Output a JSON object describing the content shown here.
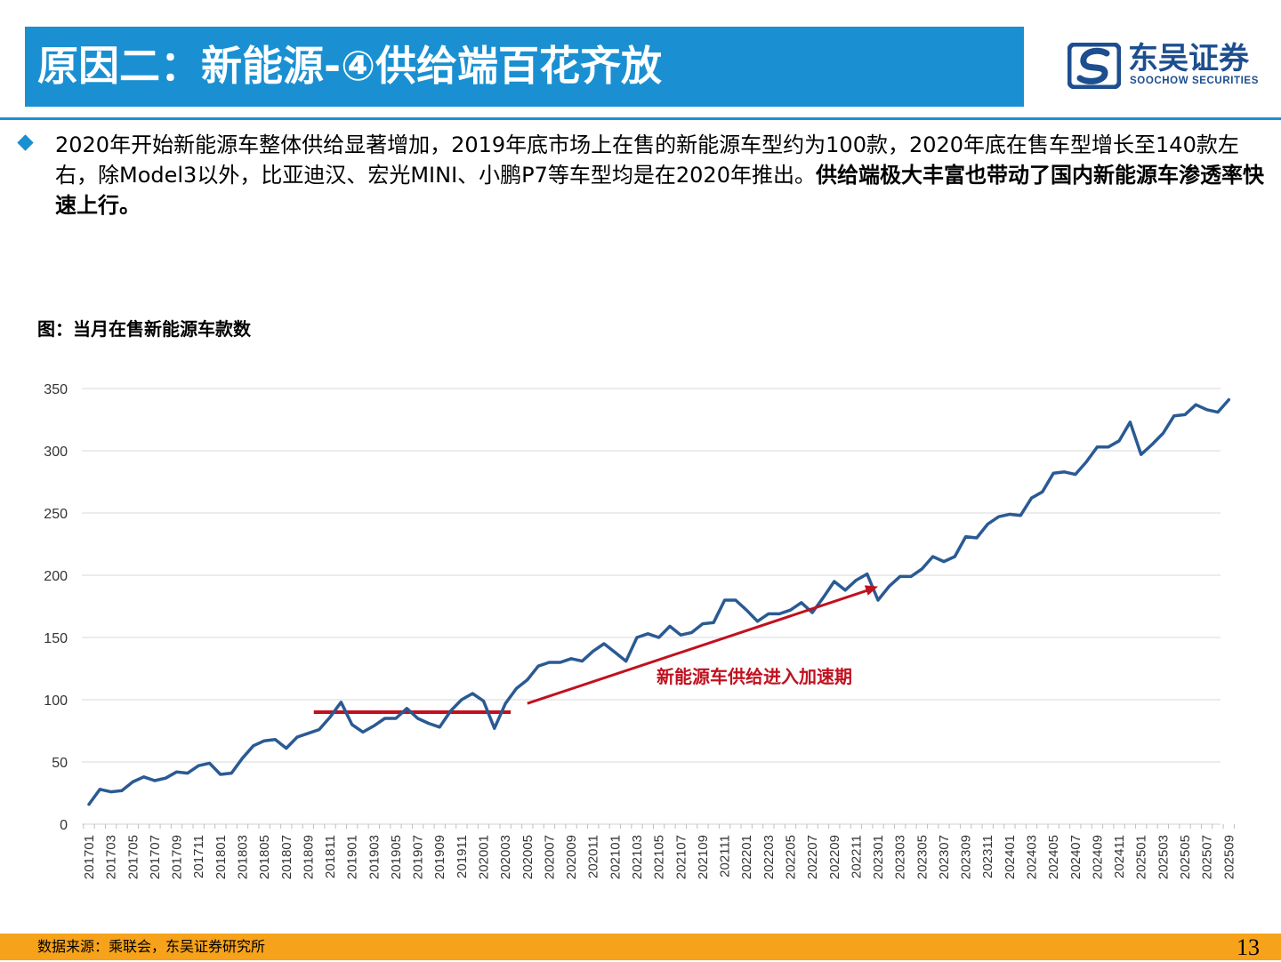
{
  "header": {
    "title": "原因二：新能源-④供给端百花齐放",
    "logo_cn": "东吴证券",
    "logo_en": "SOOCHOW SECURITIES"
  },
  "bullet": {
    "text_regular": "2020年开始新能源车整体供给显著增加，2019年底市场上在售的新能源车型约为100款，2020年底在售车型增长至140款左右，除Model3以外，比亚迪汉、宏光MINI、小鹏P7等车型均是在2020年推出。",
    "text_bold": "供给端极大丰富也带动了国内新能源车渗透率快速上行。"
  },
  "chart_caption": "图：当月在售新能源车款数",
  "chart_data": {
    "type": "line",
    "title": "",
    "xlabel": "",
    "ylabel": "",
    "ylim": [
      0,
      350
    ],
    "yticks": [
      0,
      50,
      100,
      150,
      200,
      250,
      300,
      350
    ],
    "grid": true,
    "x_start": "201701",
    "x_tick_labels": [
      "201701",
      "201703",
      "201705",
      "201707",
      "201709",
      "201711",
      "201801",
      "201803",
      "201805",
      "201807",
      "201809",
      "201811",
      "201901",
      "201903",
      "201905",
      "201907",
      "201909",
      "201911",
      "202001",
      "202003",
      "202005",
      "202007",
      "202009",
      "202011",
      "202101",
      "202103",
      "202105",
      "202107",
      "202109",
      "202111",
      "202201",
      "202203",
      "202205",
      "202207",
      "202209",
      "202211",
      "202301",
      "202303",
      "202305",
      "202307",
      "202309",
      "202311",
      "202401",
      "202403",
      "202405",
      "202407",
      "202409",
      "202411",
      "202501",
      "202503",
      "202505",
      "202507",
      "202509"
    ],
    "color": "#2a5a93",
    "series": [
      {
        "values": [
          16,
          28,
          26,
          27,
          34,
          38,
          35,
          37,
          42,
          41,
          47,
          49,
          40,
          41,
          53,
          63,
          67,
          68,
          61,
          70,
          73,
          76,
          86,
          98,
          80,
          74,
          79,
          85,
          85,
          93,
          85,
          81,
          78,
          91,
          100,
          105,
          99,
          77,
          97,
          109,
          116,
          127,
          130,
          130,
          133,
          131,
          139,
          145,
          138,
          131,
          150,
          153,
          150,
          159,
          152,
          154,
          161,
          162,
          180,
          180,
          172,
          163,
          169,
          169,
          172,
          178,
          170,
          182,
          195,
          188,
          196,
          201,
          180,
          191,
          199,
          199,
          205,
          215,
          211,
          215,
          231,
          230,
          241,
          247,
          249,
          248,
          262,
          267,
          282,
          283,
          281,
          291,
          303,
          303,
          308,
          323,
          297,
          305,
          314,
          328,
          329,
          337,
          333,
          331,
          341
        ]
      }
    ],
    "annotations": [
      {
        "type": "horizontal_segment",
        "x_from": "201810",
        "x_to": "202003",
        "y": 90,
        "color": "#c0111f"
      },
      {
        "type": "arrow",
        "x_from": "202005",
        "y_from": 97,
        "x_to": "202301",
        "y_to": 191,
        "color": "#c0111f",
        "label": "新能源车供给进入加速期"
      }
    ]
  },
  "footer": {
    "source": "数据来源：乘联会，东吴证券研究所",
    "page": "13"
  }
}
